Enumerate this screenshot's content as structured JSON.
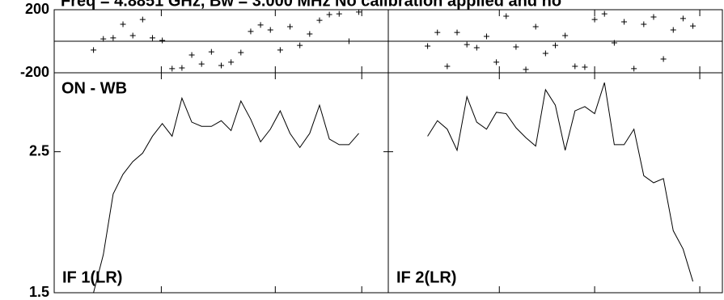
{
  "title": "Freq = 4.8851 GHz, Bw = 3.000 MHz  No calibration applied and no",
  "annotation": "ON - WB",
  "chart_data": [
    {
      "type": "scatter",
      "panel": "left-phase",
      "xlim": [
        0,
        34
      ],
      "ylim": [
        -200,
        200
      ],
      "yticks": [
        -200,
        200
      ],
      "xticks": [
        10.9,
        22.5,
        31.3
      ],
      "x": [
        4,
        5,
        6,
        7,
        8,
        9,
        10,
        11,
        12,
        13,
        14,
        15,
        16,
        17,
        18,
        19,
        20,
        21,
        22,
        23,
        24,
        25,
        26,
        27,
        28,
        29,
        30,
        31
      ],
      "values": [
        -56,
        15,
        21,
        108,
        36,
        138,
        21,
        5,
        -174,
        -169,
        -87,
        -144,
        -67,
        -154,
        -133,
        -72,
        62,
        103,
        72,
        -56,
        92,
        -26,
        46,
        133,
        169,
        174,
        0,
        185
      ]
    },
    {
      "type": "line",
      "panel": "left-amp",
      "label": "IF 1(LR)",
      "xlim": [
        0,
        34
      ],
      "ylim": [
        1.5,
        3.06
      ],
      "yticks": [
        1.5,
        2.5
      ],
      "xticks": [
        10.9,
        22.5,
        31.3
      ],
      "x": [
        4,
        5,
        6,
        7,
        8,
        9,
        10,
        11,
        12,
        13,
        14,
        15,
        16,
        17,
        18,
        19,
        20,
        21,
        22,
        23,
        24,
        25,
        26,
        27,
        28,
        29,
        30,
        31
      ],
      "values": [
        1.5,
        1.77,
        2.2,
        2.34,
        2.43,
        2.49,
        2.61,
        2.7,
        2.61,
        2.88,
        2.71,
        2.68,
        2.68,
        2.72,
        2.65,
        2.86,
        2.73,
        2.57,
        2.66,
        2.79,
        2.63,
        2.53,
        2.63,
        2.83,
        2.59,
        2.55,
        2.55,
        2.63
      ]
    },
    {
      "type": "scatter",
      "panel": "right-phase",
      "xlim": [
        0,
        34
      ],
      "ylim": [
        -200,
        200
      ],
      "xticks": [
        11.3,
        21.0,
        31.7
      ],
      "x": [
        4,
        5,
        6,
        7,
        8,
        9,
        10,
        11,
        12,
        13,
        14,
        15,
        16,
        17,
        18,
        19,
        20,
        21,
        22,
        23,
        24,
        25,
        26,
        27,
        28,
        29,
        30,
        31
      ],
      "values": [
        -31,
        56,
        -159,
        56,
        -21,
        -41,
        31,
        -133,
        159,
        -36,
        -179,
        92,
        -77,
        -26,
        36,
        -159,
        -164,
        138,
        174,
        -10,
        123,
        -174,
        108,
        154,
        -113,
        72,
        144,
        97
      ]
    },
    {
      "type": "line",
      "panel": "right-amp",
      "label": "IF 2(LR)",
      "xlim": [
        0,
        34
      ],
      "ylim": [
        1.5,
        3.06
      ],
      "xticks": [
        11.3,
        21.0,
        31.7
      ],
      "x": [
        4,
        5,
        6,
        7,
        8,
        9,
        10,
        11,
        12,
        13,
        14,
        15,
        16,
        17,
        18,
        19,
        20,
        21,
        22,
        23,
        24,
        25,
        26,
        27,
        28,
        29,
        30,
        31
      ],
      "values": [
        2.61,
        2.72,
        2.66,
        2.51,
        2.89,
        2.71,
        2.66,
        2.78,
        2.77,
        2.67,
        2.6,
        2.54,
        2.94,
        2.83,
        2.51,
        2.79,
        2.82,
        2.77,
        2.99,
        2.55,
        2.55,
        2.66,
        2.33,
        2.28,
        2.31,
        1.94,
        1.81,
        1.58
      ]
    }
  ]
}
